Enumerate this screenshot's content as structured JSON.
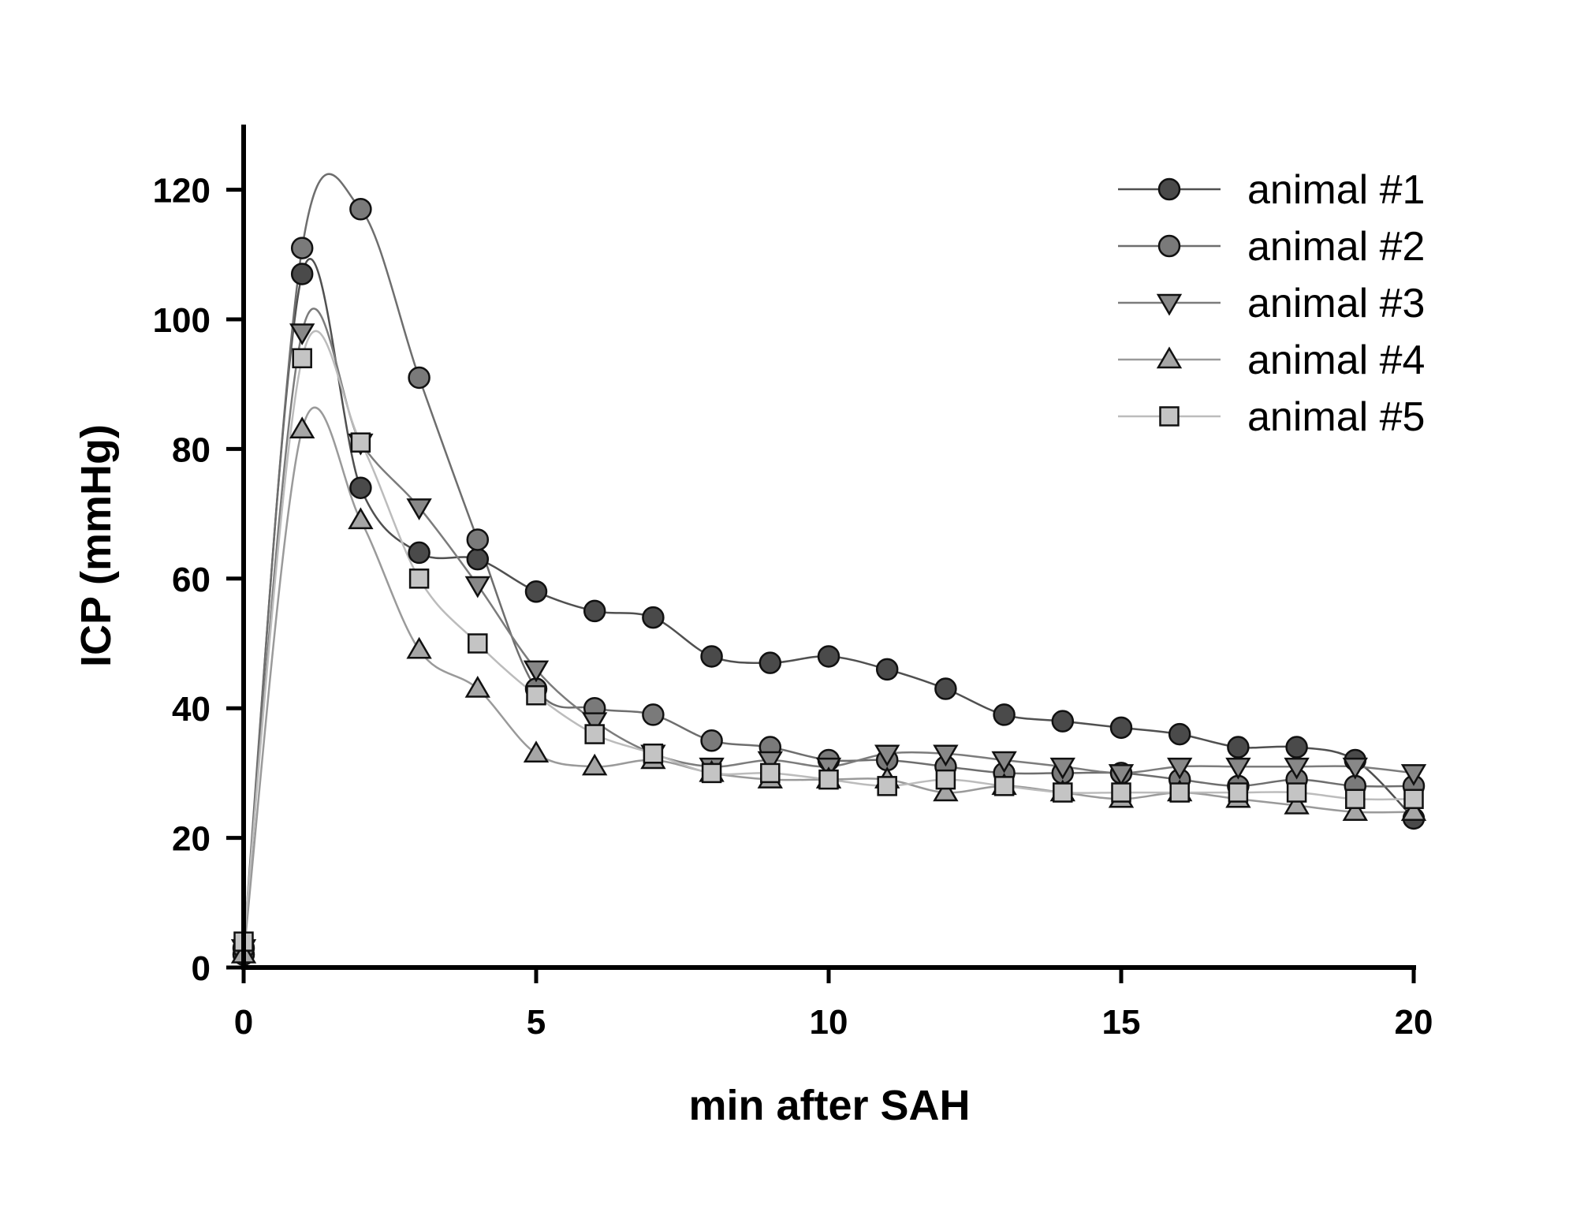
{
  "chart_data": {
    "type": "line",
    "title": "",
    "xlabel": "min after SAH",
    "ylabel": "ICP (mmHg)",
    "xlim": [
      0,
      20
    ],
    "ylim": [
      0,
      130
    ],
    "xticks": [
      0,
      5,
      10,
      15,
      20
    ],
    "yticks": [
      0,
      20,
      40,
      60,
      80,
      100,
      120
    ],
    "x": [
      0,
      1,
      2,
      3,
      4,
      5,
      6,
      7,
      8,
      9,
      10,
      11,
      12,
      13,
      14,
      15,
      16,
      17,
      18,
      19,
      20
    ],
    "grid": false,
    "smooth": true,
    "legend_position": "top-right",
    "series": [
      {
        "name": "animal #1",
        "marker": "circle",
        "line_color": "#505050",
        "marker_fill": "#4a4a4a",
        "values": [
          2,
          107,
          74,
          64,
          63,
          58,
          55,
          54,
          48,
          47,
          48,
          46,
          43,
          39,
          38,
          37,
          36,
          34,
          34,
          32,
          23
        ]
      },
      {
        "name": "animal #2",
        "marker": "circle",
        "line_color": "#6e6e6e",
        "marker_fill": "#7a7a7a",
        "values": [
          3,
          111,
          117,
          91,
          66,
          43,
          40,
          39,
          35,
          34,
          32,
          32,
          31,
          30,
          30,
          30,
          29,
          28,
          29,
          28,
          28
        ]
      },
      {
        "name": "animal #3",
        "marker": "triangle-down",
        "line_color": "#7c7c7c",
        "marker_fill": "#888888",
        "values": [
          3,
          98,
          81,
          71,
          59,
          46,
          38,
          33,
          31,
          32,
          31,
          33,
          33,
          32,
          31,
          30,
          31,
          31,
          31,
          31,
          30
        ]
      },
      {
        "name": "animal #4",
        "marker": "triangle-up",
        "line_color": "#9a9a9a",
        "marker_fill": "#a6a6a6",
        "values": [
          2,
          83,
          69,
          49,
          43,
          33,
          31,
          32,
          30,
          29,
          29,
          29,
          27,
          28,
          27,
          26,
          27,
          26,
          25,
          24,
          24
        ]
      },
      {
        "name": "animal #5",
        "marker": "square",
        "line_color": "#bcbcbc",
        "marker_fill": "#c4c4c4",
        "values": [
          4,
          94,
          81,
          60,
          50,
          42,
          36,
          33,
          30,
          30,
          29,
          28,
          29,
          28,
          27,
          27,
          27,
          27,
          27,
          26,
          26
        ]
      }
    ]
  }
}
